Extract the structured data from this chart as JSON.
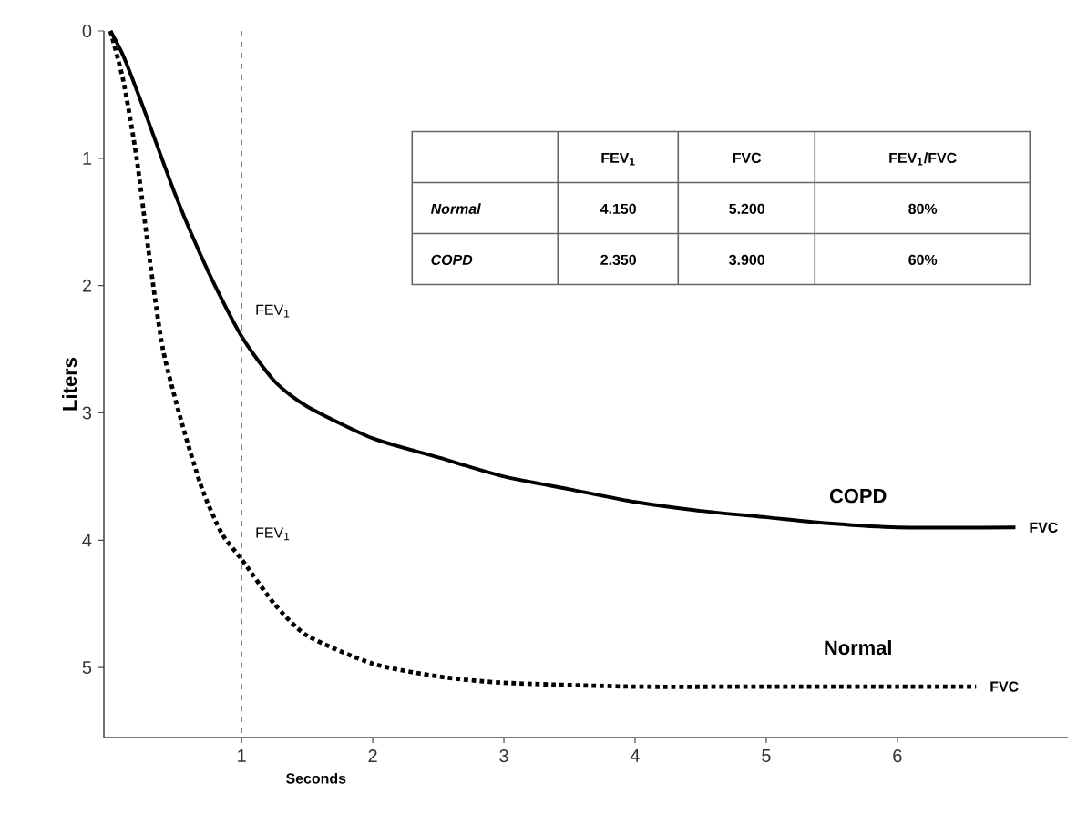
{
  "chart_data": {
    "type": "line",
    "xlabel": "Seconds",
    "ylabel": "Liters",
    "xlim": [
      -0.05,
      7.3
    ],
    "ylim": [
      5.55,
      0
    ],
    "xticks": [
      1,
      2,
      3,
      4,
      5,
      6
    ],
    "yticks": [
      0,
      1,
      2,
      3,
      4,
      5
    ],
    "legend": false,
    "grid": false,
    "marker": "none",
    "x": [
      0,
      0.1,
      0.25,
      0.5,
      0.75,
      1,
      1.25,
      1.5,
      2,
      2.5,
      3,
      3.5,
      4,
      4.5,
      5,
      5.5,
      6,
      6.9
    ],
    "series": [
      {
        "name": "COPD",
        "color": "#000000",
        "line_style": "solid",
        "values": [
          0,
          0.2,
          0.6,
          1.3,
          1.9,
          2.4,
          2.75,
          2.95,
          3.2,
          3.35,
          3.5,
          3.6,
          3.7,
          3.77,
          3.82,
          3.87,
          3.9,
          3.9
        ]
      },
      {
        "name": "Normal",
        "color": "#000000",
        "line_style": "dotted",
        "x": [
          0,
          0.1,
          0.2,
          0.3,
          0.4,
          0.55,
          0.7,
          0.85,
          1,
          1.25,
          1.5,
          2,
          2.5,
          3,
          4,
          5,
          6,
          6.6
        ],
        "values": [
          0,
          0.4,
          1.0,
          1.8,
          2.5,
          3.1,
          3.6,
          3.95,
          4.15,
          4.5,
          4.75,
          4.97,
          5.07,
          5.12,
          5.15,
          5.15,
          5.15,
          5.15
        ]
      }
    ],
    "ref_lines": [
      {
        "axis": "x",
        "value": 1,
        "line_style": "dashed",
        "color": "#444444"
      }
    ],
    "annotations": [
      {
        "text": "FEV$_{1}$",
        "x": 1,
        "y": 2.4
      },
      {
        "text": "FEV$_{1}$",
        "x": 1,
        "y": 4.15
      },
      {
        "text": "FVC",
        "x": 6.9,
        "y": 3.9
      },
      {
        "text": "FVC",
        "x": 6.6,
        "y": 5.15
      },
      "FEV$_{1}$",
      "FVC",
      "FEV$_{1}$/FVC",
      "Normal",
      "4.150",
      "5.200",
      "80%",
      "COPD",
      "2.350",
      "3.900",
      "60%"
    ]
  }
}
